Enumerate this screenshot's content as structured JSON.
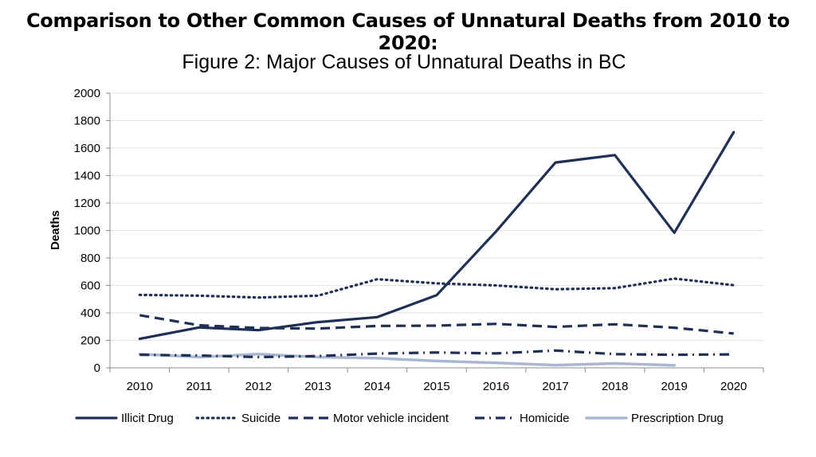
{
  "page_heading": "Comparison to Other Common Causes of Unnatural Deaths from 2010 to 2020:",
  "chart_data": {
    "type": "line",
    "title": "Figure 2: Major Causes of Unnatural Deaths in BC",
    "xlabel": "",
    "ylabel": "Deaths",
    "ylim": [
      0,
      2000
    ],
    "yticks": [
      0,
      200,
      400,
      600,
      800,
      1000,
      1200,
      1400,
      1600,
      1800,
      2000
    ],
    "grid": "horizontal",
    "legend_position": "bottom",
    "categories": [
      "2010",
      "2011",
      "2012",
      "2013",
      "2014",
      "2015",
      "2016",
      "2017",
      "2018",
      "2019",
      "2020"
    ],
    "series": [
      {
        "name": "Illicit Drug",
        "style": "solid",
        "color": "#1f2f55",
        "values": [
          211,
          294,
          274,
          333,
          369,
          529,
          993,
          1495,
          1549,
          984,
          1716
        ]
      },
      {
        "name": "Suicide",
        "style": "dotted",
        "color": "#1f2f55",
        "values": [
          531,
          525,
          512,
          525,
          645,
          615,
          600,
          572,
          580,
          650,
          602
        ]
      },
      {
        "name": "Motor vehicle incident",
        "style": "dashed",
        "color": "#1f2f55",
        "values": [
          383,
          310,
          290,
          286,
          305,
          307,
          320,
          298,
          317,
          292,
          250
        ]
      },
      {
        "name": "Homicide",
        "style": "dashdot",
        "color": "#1f2f55",
        "values": [
          95,
          90,
          78,
          86,
          104,
          112,
          105,
          126,
          100,
          95,
          98
        ]
      },
      {
        "name": "Prescription Drug",
        "style": "solid-light",
        "color": "#a9b7d3",
        "values": [
          100,
          78,
          100,
          78,
          70,
          50,
          36,
          20,
          32,
          18,
          null
        ]
      }
    ]
  }
}
